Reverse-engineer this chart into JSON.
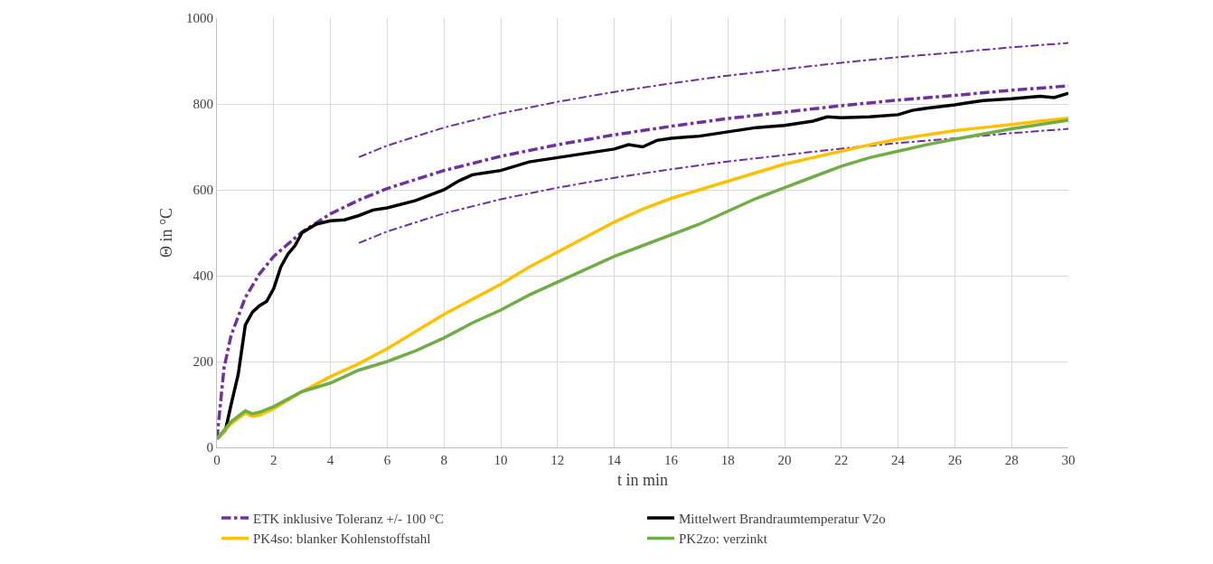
{
  "chart_data": {
    "type": "line",
    "xlabel": "t in min",
    "ylabel": "Θ in °C",
    "xlim": [
      0,
      30
    ],
    "xticks": [
      0,
      2,
      4,
      6,
      8,
      10,
      12,
      14,
      16,
      18,
      20,
      22,
      24,
      26,
      28,
      30
    ],
    "ylim": [
      0,
      1000
    ],
    "yticks": [
      0,
      200,
      400,
      600,
      800,
      1000
    ],
    "grid": true,
    "legend": "bottom",
    "marker": "none",
    "series": [
      {
        "name": "ETK inklusive Toleranz +/- 100 °C",
        "color": "#7030a0",
        "line_style": "dashdot",
        "x": [
          0,
          0.25,
          0.5,
          1,
          1.5,
          2,
          3,
          4,
          5,
          6,
          8,
          10,
          12,
          14,
          16,
          18,
          20,
          22,
          24,
          26,
          28,
          30
        ],
        "values": [
          20,
          185,
          261,
          349,
          404,
          445,
          502,
          544,
          576,
          603,
          645,
          678,
          705,
          728,
          748,
          766,
          781,
          796,
          809,
          820,
          832,
          842
        ]
      },
      {
        "color": "#7030a0",
        "line_style": "dashdot",
        "x": [
          5,
          6,
          8,
          10,
          12,
          14,
          16,
          18,
          20,
          22,
          24,
          26,
          28,
          30
        ],
        "values": [
          676,
          703,
          745,
          778,
          805,
          828,
          848,
          866,
          881,
          896,
          909,
          920,
          932,
          942
        ]
      },
      {
        "color": "#7030a0",
        "line_style": "dashdot",
        "x": [
          5,
          6,
          8,
          10,
          12,
          14,
          16,
          18,
          20,
          22,
          24,
          26,
          28,
          30
        ],
        "values": [
          476,
          503,
          545,
          578,
          605,
          628,
          648,
          666,
          681,
          696,
          709,
          720,
          732,
          742
        ]
      },
      {
        "name": "Mittelwert Brandraumtemperatur V2o",
        "color": "#000000",
        "line_style": "solid",
        "x": [
          0,
          0.3,
          0.5,
          0.75,
          1,
          1.25,
          1.5,
          1.75,
          2,
          2.25,
          2.5,
          2.75,
          3,
          3.5,
          4,
          4.5,
          5,
          5.5,
          6,
          7,
          8,
          8.5,
          9,
          9.5,
          10,
          11,
          12,
          13,
          14,
          14.5,
          15,
          15.5,
          16,
          17,
          18,
          19,
          20,
          21,
          21.5,
          22,
          23,
          24,
          24.5,
          25,
          26,
          26.5,
          27,
          28,
          29,
          29.5,
          30
        ],
        "values": [
          20,
          40,
          100,
          170,
          285,
          315,
          330,
          340,
          370,
          420,
          450,
          470,
          500,
          520,
          528,
          530,
          540,
          553,
          558,
          575,
          600,
          620,
          635,
          640,
          645,
          665,
          675,
          685,
          695,
          705,
          700,
          715,
          720,
          725,
          735,
          745,
          750,
          760,
          770,
          768,
          770,
          775,
          785,
          790,
          798,
          803,
          808,
          812,
          818,
          815,
          825
        ]
      },
      {
        "name": "PK4so: blanker Kohlenstoffstahl",
        "color": "#ffc000",
        "line_style": "solid",
        "x": [
          0,
          0.5,
          1,
          1.25,
          1.5,
          2,
          3,
          4,
          5,
          6,
          7,
          8,
          9,
          10,
          11,
          12,
          13,
          14,
          15,
          16,
          17,
          18,
          19,
          20,
          21,
          22,
          23,
          24,
          25,
          26,
          27,
          28,
          29,
          30
        ],
        "values": [
          20,
          55,
          80,
          72,
          75,
          90,
          130,
          165,
          195,
          230,
          270,
          310,
          345,
          380,
          420,
          455,
          490,
          525,
          555,
          580,
          600,
          620,
          640,
          660,
          675,
          690,
          705,
          718,
          728,
          738,
          745,
          752,
          760,
          767
        ]
      },
      {
        "name": "PK2zo: verzinkt",
        "color": "#70ad47",
        "line_style": "solid",
        "x": [
          0,
          0.5,
          1,
          1.25,
          1.5,
          2,
          3,
          4,
          5,
          6,
          7,
          8,
          9,
          10,
          11,
          12,
          13,
          14,
          15,
          16,
          17,
          18,
          19,
          20,
          21,
          22,
          23,
          24,
          25,
          26,
          27,
          28,
          29,
          30
        ],
        "values": [
          20,
          60,
          85,
          78,
          82,
          95,
          130,
          150,
          180,
          200,
          225,
          255,
          290,
          320,
          355,
          385,
          415,
          445,
          470,
          495,
          520,
          550,
          580,
          605,
          630,
          655,
          675,
          690,
          705,
          718,
          730,
          742,
          752,
          762
        ]
      }
    ]
  }
}
